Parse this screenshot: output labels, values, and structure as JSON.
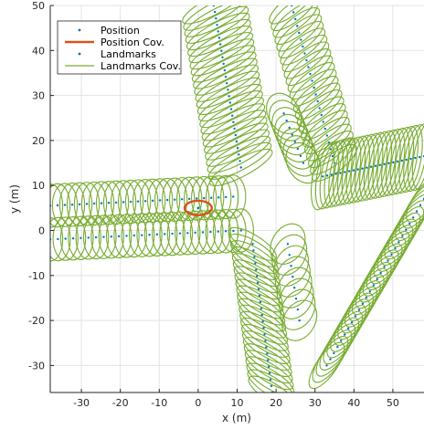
{
  "chart_data": {
    "type": "scatter",
    "xlabel": "x (m)",
    "ylabel": "y (m)",
    "xlim": [
      -38,
      58
    ],
    "ylim": [
      -36,
      50
    ],
    "xticks": [
      -30,
      -20,
      -10,
      0,
      10,
      20,
      30,
      40,
      50
    ],
    "yticks": [
      -30,
      -20,
      -10,
      0,
      10,
      20,
      30,
      40,
      50
    ],
    "grid": true,
    "legend_position": "top-left",
    "colors": {
      "position": "#0072BD",
      "position_cov": "#D95319",
      "landmarks": "#0072BD",
      "landmarks_cov": "#77AC30"
    },
    "legend": [
      {
        "label": "Position",
        "kind": "position"
      },
      {
        "label": "Position Cov.",
        "kind": "position_cov"
      },
      {
        "label": "Landmarks",
        "kind": "landmarks"
      },
      {
        "label": "Landmarks Cov.",
        "kind": "landmarks_cov"
      }
    ],
    "position": {
      "x": 0,
      "y": 5
    },
    "position_cov": {
      "cx": 0,
      "cy": 5,
      "rx": 3.5,
      "ry": 1.6,
      "angle_deg": 0
    },
    "landmark_groups": [
      {
        "name": "left-upper",
        "start": [
          -38,
          5.5
        ],
        "end": [
          9,
          7.5
        ],
        "count": 26,
        "rx": 3.2,
        "ry": 4.8,
        "angle_deg": 0
      },
      {
        "name": "left-lower",
        "start": [
          -38,
          -2
        ],
        "end": [
          11,
          0
        ],
        "count": 26,
        "rx": 3.2,
        "ry": 4.8,
        "angle_deg": 0
      },
      {
        "name": "top-left-diag",
        "start": [
          11,
          14
        ],
        "end": [
          4,
          50
        ],
        "count": 26,
        "rx": 9,
        "ry": 2.0,
        "angle_deg": -28
      },
      {
        "name": "top-right-diag",
        "start": [
          35,
          15
        ],
        "end": [
          24,
          50
        ],
        "count": 24,
        "rx": 7,
        "ry": 2.0,
        "angle_deg": -38
      },
      {
        "name": "right-upper",
        "start": [
          32,
          12
        ],
        "end": [
          58,
          16.5
        ],
        "count": 24,
        "rx": 2.6,
        "ry": 7.5,
        "angle_deg": 10
      },
      {
        "name": "right-lower",
        "start": [
          33,
          -30
        ],
        "end": [
          58,
          7
        ],
        "count": 28,
        "rx": 7,
        "ry": 2.2,
        "angle_deg": -55
      },
      {
        "name": "bottom-left-diag",
        "start": [
          14,
          -3
        ],
        "end": [
          19,
          -36
        ],
        "count": 24,
        "rx": 7,
        "ry": 2.0,
        "angle_deg": 32
      },
      {
        "name": "cluster-upper",
        "start": [
          22,
          26
        ],
        "end": [
          27,
          15
        ],
        "count": 8,
        "rx": 5.5,
        "ry": 3.5,
        "angle_deg": 60
      },
      {
        "name": "cluster-lower",
        "start": [
          23,
          -3
        ],
        "end": [
          26,
          -20
        ],
        "count": 8,
        "rx": 5.5,
        "ry": 3.5,
        "angle_deg": -60
      }
    ]
  }
}
